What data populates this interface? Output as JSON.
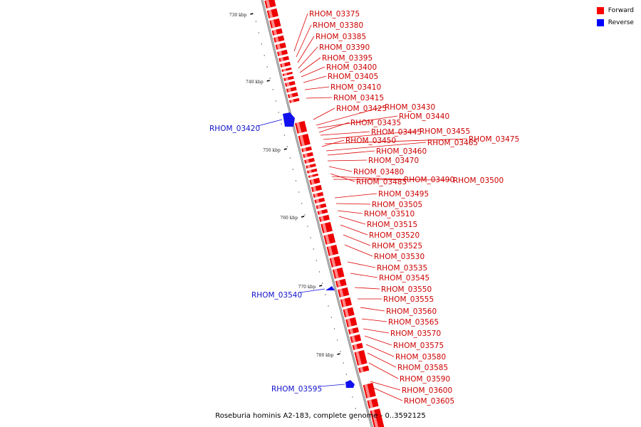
{
  "legend": {
    "items": [
      {
        "label": "Forward",
        "color": "#ff0000"
      },
      {
        "label": "Reverse",
        "color": "#0000ff"
      }
    ]
  },
  "caption": "Roseburia hominis A2-183, complete genome - 0..3592125",
  "colors": {
    "forward": "#ee0000",
    "reverse": "#1111ee",
    "backbone": "#888888"
  },
  "ticks": [
    "730 kbp",
    "740 kbp",
    "750 kbp",
    "760 kbp",
    "770 kbp",
    "780 kbp"
  ],
  "forward_genes": [
    "RHOM_03375",
    "RHOM_03380",
    "RHOM_03385",
    "RHOM_03390",
    "RHOM_03395",
    "RHOM_03400",
    "RHOM_03405",
    "RHOM_03410",
    "RHOM_03415",
    "RHOM_03425",
    "RHOM_03430",
    "RHOM_03440",
    "RHOM_03435",
    "RHOM_03445",
    "RHOM_03455",
    "RHOM_03475",
    "RHOM_03450",
    "RHOM_03465",
    "RHOM_03460",
    "RHOM_03470",
    "RHOM_03480",
    "RHOM_03485",
    "RHOM_03490",
    "RHOM_03500",
    "RHOM_03495",
    "RHOM_03505",
    "RHOM_03510",
    "RHOM_03515",
    "RHOM_03520",
    "RHOM_03525",
    "RHOM_03530",
    "RHOM_03535",
    "RHOM_03545",
    "RHOM_03550",
    "RHOM_03555",
    "RHOM_03560",
    "RHOM_03565",
    "RHOM_03570",
    "RHOM_03575",
    "RHOM_03580",
    "RHOM_03585",
    "RHOM_03590",
    "RHOM_03600",
    "RHOM_03605"
  ],
  "reverse_genes": [
    "RHOM_03420",
    "RHOM_03540",
    "RHOM_03595"
  ]
}
